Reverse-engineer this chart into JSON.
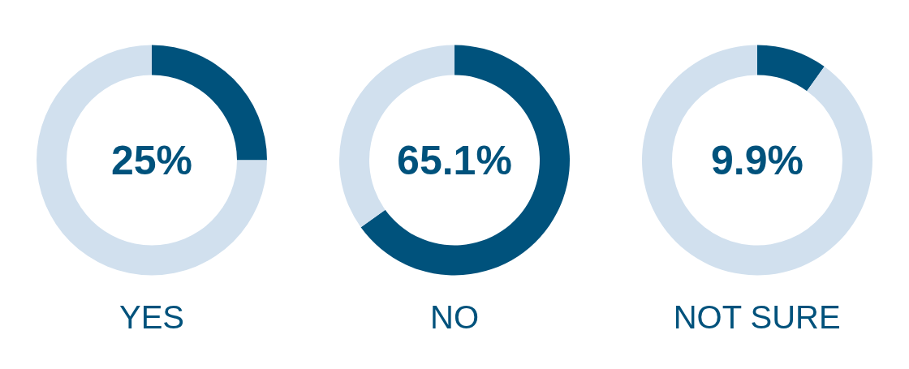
{
  "chart_data": [
    {
      "type": "donut",
      "title": "YES",
      "categories": [
        null,
        null
      ],
      "values": [
        25,
        75
      ],
      "colors": [
        "#00527c",
        "#d1e0ee"
      ],
      "value_labels": [
        "25%",
        null
      ]
    },
    {
      "type": "donut",
      "title": "NO",
      "categories": [
        null,
        null
      ],
      "values": [
        65.1,
        34.9
      ],
      "colors": [
        "#00527c",
        "#d1e0ee"
      ],
      "value_labels": [
        "65.1%",
        null
      ]
    },
    {
      "type": "donut",
      "title": "NOT SURE",
      "categories": [
        null,
        null
      ],
      "values": [
        9.9,
        90.1
      ],
      "colors": [
        "#00527c",
        "#d1e0ee"
      ],
      "value_labels": [
        "9.9%",
        null
      ]
    }
  ]
}
